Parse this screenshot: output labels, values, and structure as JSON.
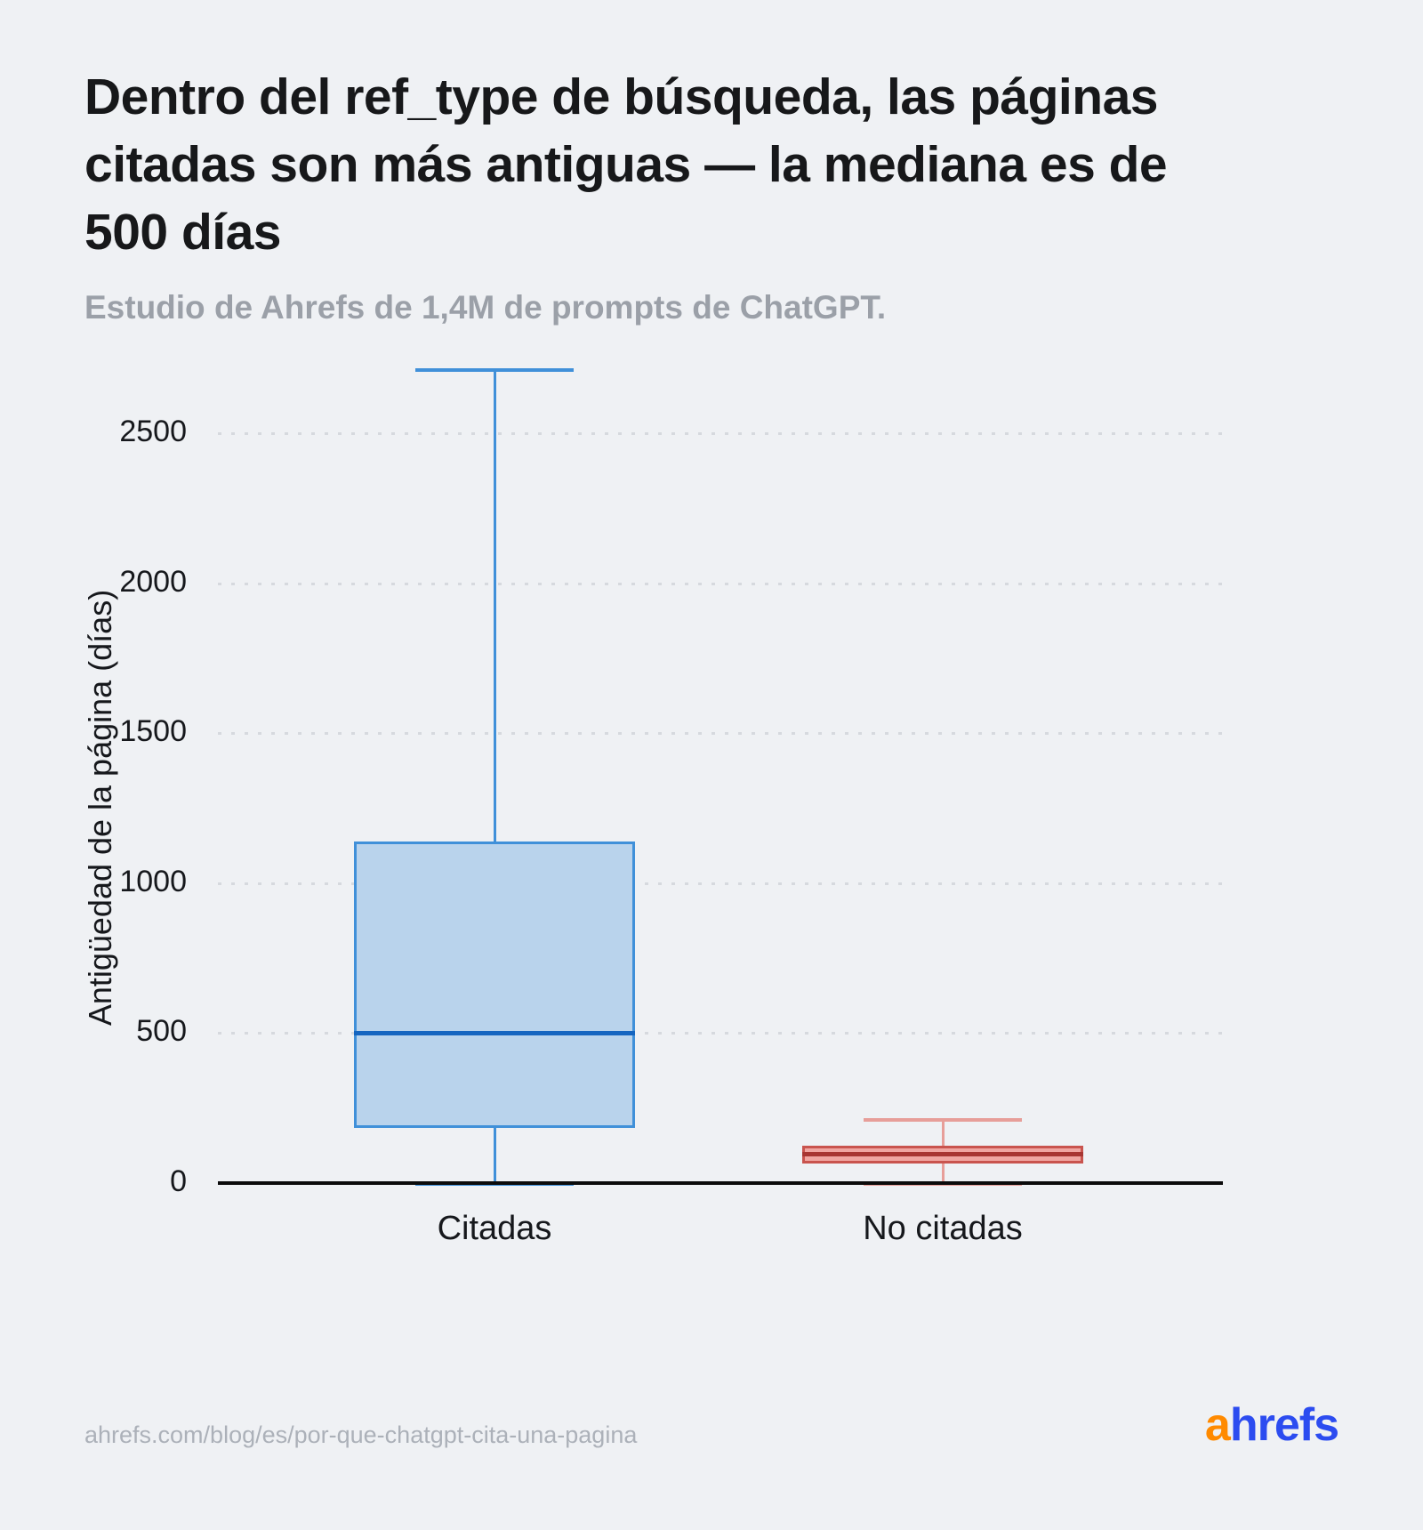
{
  "header": {
    "title": "Dentro del ref_type de búsqueda, las páginas citadas son más antiguas — la mediana es de 500 días",
    "subtitle": "Estudio de Ahrefs de 1,4M de prompts de ChatGPT."
  },
  "footer": {
    "url": "ahrefs.com/blog/es/por-que-chatgpt-cita-una-pagina",
    "logo": {
      "prefix": "a",
      "rest": "hrefs",
      "prefix_color": "#ff8a00",
      "rest_color": "#2c4cf0"
    }
  },
  "chart_data": {
    "type": "boxplot",
    "title": "Dentro del ref_type de búsqueda, las páginas citadas son más antiguas — la mediana es de 500 días",
    "subtitle": "Estudio de Ahrefs de 1,4M de prompts de ChatGPT.",
    "ylabel": "Antigüedad de la página (días)",
    "xlabel": "",
    "y_ticks": [
      0,
      500,
      1000,
      1500,
      2000,
      2500
    ],
    "ylim": [
      0,
      2750
    ],
    "grid": "horizontal-dotted",
    "legend": "none",
    "categories": [
      "Citadas",
      "No citadas"
    ],
    "series": [
      {
        "name": "Citadas",
        "whisker_low": 0,
        "q1": 185,
        "median": 500,
        "q3": 1140,
        "whisker_high": 2710,
        "fill": "#b9d3ec",
        "stroke": "#4090d9",
        "median_color": "#1565c0",
        "whisker_color": "#4090d9"
      },
      {
        "name": "No citadas",
        "whisker_low": 0,
        "q1": 65,
        "median": 95,
        "q3": 125,
        "whisker_high": 210,
        "fill": "#f0a6a1",
        "stroke": "#c9544e",
        "median_color": "#a83632",
        "whisker_color": "#e79e99"
      }
    ]
  }
}
